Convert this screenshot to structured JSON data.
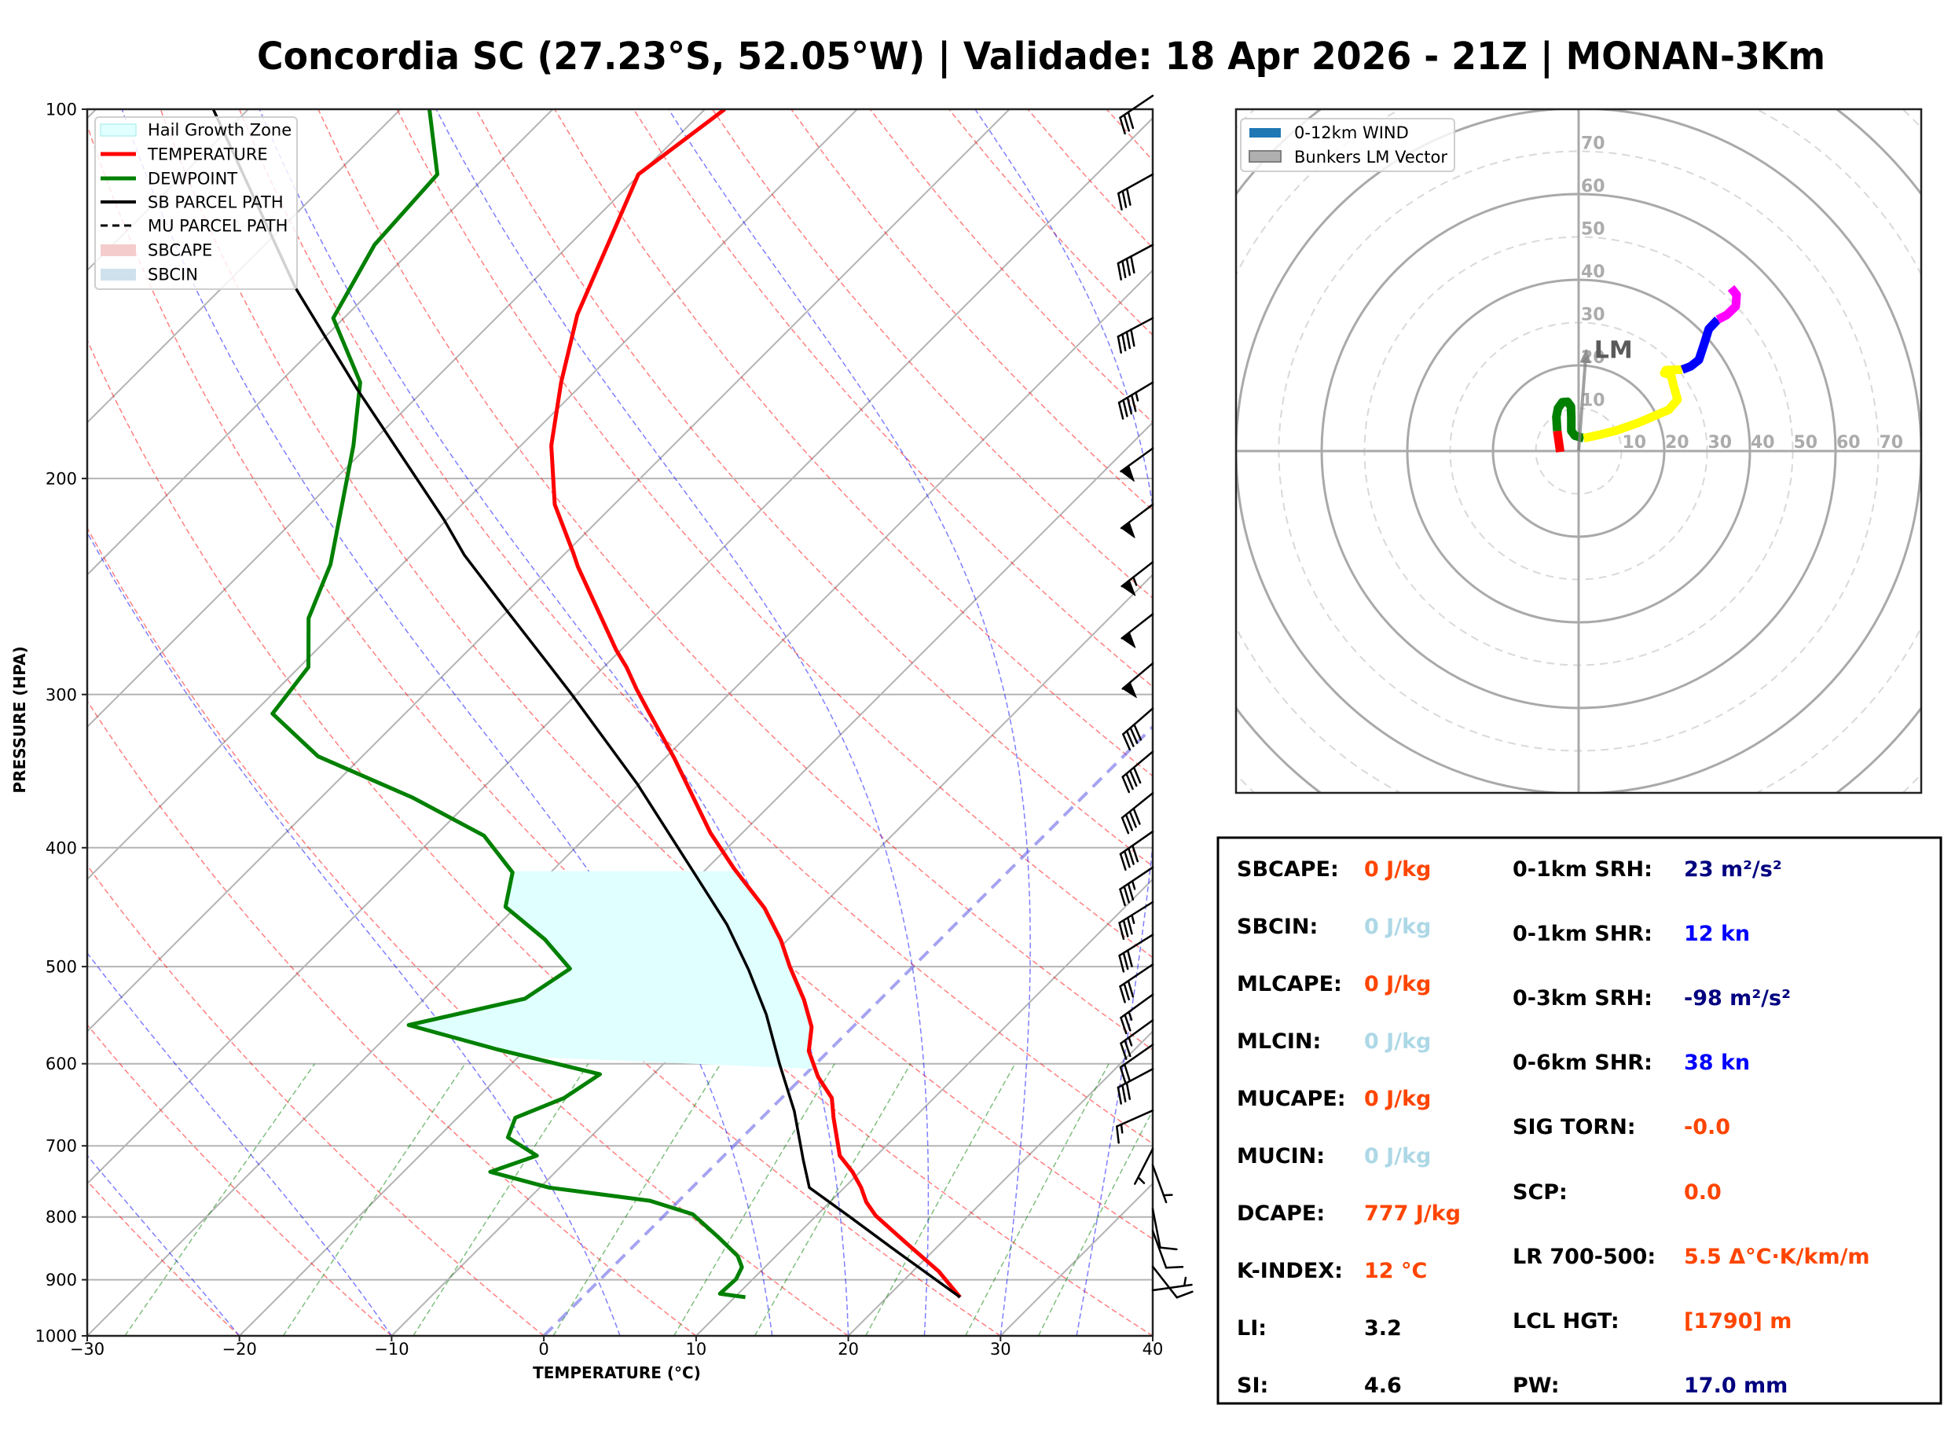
{
  "figure": {
    "title": "Concordia SC (27.23°S, 52.05°W) | Validade: 18 Apr 2026 - 21Z | MONAN-3Km"
  },
  "chart_data": [
    {
      "type": "line",
      "subtype": "skew-T log-P",
      "xlabel": "TEMPERATURE (°C)",
      "ylabel": "PRESSURE (HPA)",
      "xlim": [
        -30,
        40
      ],
      "ylim": [
        1000,
        100
      ],
      "yscale": "log",
      "grid": true,
      "xticks": [
        -30,
        -20,
        -10,
        0,
        10,
        20,
        30,
        40
      ],
      "xtick_labels": [
        "−30",
        "−20",
        "−10",
        "0",
        "10",
        "20",
        "30",
        "40"
      ],
      "yticks": [
        100,
        200,
        300,
        400,
        500,
        600,
        700,
        800,
        900,
        1000
      ],
      "ytick_labels": [
        "100",
        "200",
        "300",
        "400",
        "500",
        "600",
        "700",
        "800",
        "900",
        "1000"
      ],
      "legend": {
        "placement": "top-left",
        "entries": [
          {
            "label": "Hail Growth Zone",
            "color": "#e0ffff"
          },
          {
            "label": "TEMPERATURE",
            "color": "#ff0000"
          },
          {
            "label": "DEWPOINT",
            "color": "#008000"
          },
          {
            "label": "SB PARCEL PATH",
            "color": "#000000"
          },
          {
            "label": "MU PARCEL PATH",
            "color": "#000000"
          },
          {
            "label": "SBCAPE",
            "color": "#f4cccc"
          },
          {
            "label": "SBCIN",
            "color": "#cfe1ec"
          }
        ]
      },
      "reference_lines": {
        "isotherm_step_c": 10,
        "dry_adiabats_theta_c": [
          -40,
          -30,
          -20,
          -10,
          0,
          10,
          20,
          30,
          40,
          50,
          60,
          70,
          80,
          90,
          100,
          110,
          120,
          130,
          140,
          150,
          160,
          170,
          180,
          190,
          200
        ],
        "moist_adiabats_t0_c": [
          -30,
          -20,
          -10,
          5,
          15,
          20,
          25,
          30,
          35,
          40,
          45
        ],
        "mixing_ratios_kgkg": [
          0.0004,
          0.001,
          0.002,
          0.004,
          0.007,
          0.01,
          0.016,
          0.024,
          0.032
        ],
        "mixing_ratio_top_hpa": 600
      },
      "series": [
        {
          "name": "TEMPERATURE",
          "color": "#ff0000",
          "p": [
            930,
            886,
            840,
            798,
            778,
            757,
            735,
            713,
            664,
            640,
            615,
            586,
            560,
            532,
            500,
            476,
            448,
            416,
            389,
            338,
            310,
            297,
            285,
            276,
            236,
            230,
            210,
            188,
            167,
            147,
            113,
            100
          ],
          "t": [
            24.8,
            21.7,
            17.7,
            13.9,
            12.4,
            11.1,
            9.5,
            7.6,
            4.7,
            3.3,
            1.0,
            -1.3,
            -2.7,
            -5.0,
            -8.1,
            -10.4,
            -13.6,
            -18.2,
            -22.1,
            -29.4,
            -34.1,
            -36.4,
            -38.5,
            -40.3,
            -48.3,
            -49.5,
            -53.9,
            -58.0,
            -61.5,
            -64.9,
            -70.1,
            -68.7
          ]
        },
        {
          "name": "DEWPOINT",
          "color": "#008000",
          "p": [
            930,
            924,
            899,
            879,
            861,
            830,
            796,
            776,
            757,
            735,
            713,
            689,
            664,
            640,
            612,
            584,
            558,
            531,
            502,
            475,
            447,
            419,
            391,
            364,
            337,
            311,
            285,
            260,
            235,
            188,
            167,
            148,
            129,
            113,
            100
          ],
          "t": [
            10.7,
            8.8,
            8.9,
            8.5,
            7.5,
            4.9,
            1.8,
            -1.9,
            -9.4,
            -14.3,
            -12.3,
            -15.4,
            -16.2,
            -14.3,
            -13.5,
            -21.9,
            -29.3,
            -23.4,
            -22.4,
            -26.0,
            -30.7,
            -32.5,
            -36.8,
            -44.0,
            -52.9,
            -58.7,
            -59.4,
            -62.6,
            -64.7,
            -71.0,
            -74.7,
            -80.7,
            -82.8,
            -83.3,
            -88.1
          ]
        },
        {
          "name": "SB PARCEL PATH",
          "color": "#000000",
          "p": [
            930,
            850,
            800,
            757,
            719,
            656,
            600,
            547,
            503,
            462,
            416,
            355,
            300,
            284,
            255,
            231,
            216,
            169,
            140,
            100
          ],
          "t": [
            24.8,
            17.3,
            12.3,
            7.7,
            5.5,
            1.7,
            -2.4,
            -6.5,
            -10.6,
            -15.0,
            -21.0,
            -30.1,
            -40.3,
            -43.7,
            -50.4,
            -56.5,
            -60.2,
            -74.5,
            -85.1,
            -102.3
          ]
        }
      ],
      "hail_growth_zone": {
        "color": "#e0ffff",
        "p_top": 418,
        "p_bottom_dewpoint": 592,
        "p_bottom_temperature": 606
      },
      "wind_barbs": [
        {
          "p": 97.5,
          "kt": 30,
          "dir": 236
        },
        {
          "p": 113,
          "kt": 30,
          "dir": 241
        },
        {
          "p": 129,
          "kt": 40,
          "dir": 242
        },
        {
          "p": 148,
          "kt": 40,
          "dir": 242
        },
        {
          "p": 167,
          "kt": 45,
          "dir": 239
        },
        {
          "p": 189,
          "kt": 50,
          "dir": 234
        },
        {
          "p": 210,
          "kt": 50,
          "dir": 233
        },
        {
          "p": 234,
          "kt": 55,
          "dir": 232
        },
        {
          "p": 258,
          "kt": 50,
          "dir": 232
        },
        {
          "p": 283,
          "kt": 50,
          "dir": 230
        },
        {
          "p": 308,
          "kt": 40,
          "dir": 229
        },
        {
          "p": 334,
          "kt": 40,
          "dir": 230
        },
        {
          "p": 361,
          "kt": 40,
          "dir": 231
        },
        {
          "p": 388,
          "kt": 40,
          "dir": 235
        },
        {
          "p": 415,
          "kt": 35,
          "dir": 236
        },
        {
          "p": 443,
          "kt": 35,
          "dir": 238
        },
        {
          "p": 471,
          "kt": 30,
          "dir": 238
        },
        {
          "p": 498,
          "kt": 30,
          "dir": 236
        },
        {
          "p": 527,
          "kt": 25,
          "dir": 234
        },
        {
          "p": 553,
          "kt": 25,
          "dir": 234
        },
        {
          "p": 579,
          "kt": 20,
          "dir": 235
        },
        {
          "p": 606,
          "kt": 30,
          "dir": 242
        },
        {
          "p": 655,
          "kt": 15,
          "dir": 246
        },
        {
          "p": 704,
          "kt": 5,
          "dir": 207
        },
        {
          "p": 726,
          "kt": 5,
          "dir": 160
        },
        {
          "p": 788,
          "kt": 10,
          "dir": 169
        },
        {
          "p": 821,
          "kt": 10,
          "dir": 160
        },
        {
          "p": 878,
          "kt": 10,
          "dir": 142
        },
        {
          "p": 918,
          "kt": 5,
          "dir": 82
        }
      ]
    },
    {
      "type": "line",
      "subtype": "hodograph",
      "xlim": [
        -80,
        80
      ],
      "ylim": [
        -80,
        80
      ],
      "units": "kn",
      "ring_step_kt": 10,
      "ring_max_kt": 120,
      "ring_labels": [
        "10",
        "20",
        "30",
        "40",
        "50",
        "60",
        "70"
      ],
      "legend": {
        "placement": "top-left",
        "entries": [
          {
            "label": "0-12km WIND",
            "color": "#1f77b4"
          },
          {
            "label": "Bunkers LM Vector",
            "color": "#b0b0b0"
          }
        ]
      },
      "segments": [
        {
          "color": "#ff0000",
          "u": [
            -4.3,
            -4.6,
            -5.0
          ],
          "v": [
            -0.2,
            2.0,
            4.7
          ]
        },
        {
          "color": "#008000",
          "u": [
            -5.0,
            -5.2,
            -4.8,
            -3.8,
            -2.6,
            -1.8,
            -1.7,
            -1.7,
            -0.9,
            1.2
          ],
          "v": [
            4.7,
            8.0,
            10.0,
            11.4,
            11.5,
            10.4,
            8.0,
            4.7,
            3.6,
            3.0
          ]
        },
        {
          "color": "#ffff00",
          "u": [
            1.2,
            4.5,
            8.5,
            13.7,
            21.0,
            23.1,
            22.1,
            21.6,
            20.0,
            20.4,
            24.2
          ],
          "v": [
            3.0,
            3.7,
            4.7,
            6.5,
            9.6,
            12.0,
            15.6,
            17.7,
            18.2,
            18.9,
            19.0
          ]
        },
        {
          "color": "#0000ff",
          "u": [
            24.2,
            26.2,
            28.1,
            29.3,
            30.4,
            32.5
          ],
          "v": [
            19.0,
            19.8,
            21.3,
            25.0,
            28.5,
            30.7
          ]
        },
        {
          "color": "#ff00ff",
          "u": [
            32.5,
            34.6,
            36.7,
            36.9,
            35.6
          ],
          "v": [
            30.7,
            31.8,
            33.8,
            36.5,
            38.1
          ]
        }
      ],
      "bunkers_lm": {
        "label": "LM",
        "u": 1.8,
        "v": 23.9,
        "color": "#808080"
      }
    }
  ],
  "stats": {
    "left": [
      {
        "label": "SBCAPE:",
        "value": "0 J/kg",
        "color": "#ff4500"
      },
      {
        "label": "SBCIN:",
        "value": "0 J/kg",
        "color": "#add8e6"
      },
      {
        "label": "MLCAPE:",
        "value": "0 J/kg",
        "color": "#ff4500"
      },
      {
        "label": "MLCIN:",
        "value": "0 J/kg",
        "color": "#add8e6"
      },
      {
        "label": "MUCAPE:",
        "value": "0 J/kg",
        "color": "#ff4500"
      },
      {
        "label": "MUCIN:",
        "value": "0 J/kg",
        "color": "#add8e6"
      },
      {
        "label": "DCAPE:",
        "value": "777 J/kg",
        "color": "#ff4500"
      },
      {
        "label": "K-INDEX:",
        "value": "12 °C",
        "color": "#ff4500"
      },
      {
        "label": "LI:",
        "value": "3.2",
        "color": "#000000"
      },
      {
        "label": "SI:",
        "value": "4.6",
        "color": "#000000"
      }
    ],
    "right": [
      {
        "label": "0-1km SRH:",
        "value": "23 m²/s²",
        "color": "#000080"
      },
      {
        "label": "0-1km SHR:",
        "value": "12 kn",
        "color": "#0000ff"
      },
      {
        "label": "0-3km SRH:",
        "value": "-98 m²/s²",
        "color": "#000080"
      },
      {
        "label": "0-6km SHR:",
        "value": "38 kn",
        "color": "#0000ff"
      },
      {
        "label": "SIG TORN:",
        "value": "-0.0",
        "color": "#ff4500"
      },
      {
        "label": "SCP:",
        "value": "0.0",
        "color": "#ff4500"
      },
      {
        "label": "LR 700-500:",
        "value": "5.5 Δ°C·K/km/m",
        "color": "#ff4500"
      },
      {
        "label": "LCL HGT:",
        "value": "[1790] m",
        "color": "#ff4500"
      },
      {
        "label": "PW:",
        "value": "17.0 mm",
        "color": "#000080"
      }
    ]
  }
}
